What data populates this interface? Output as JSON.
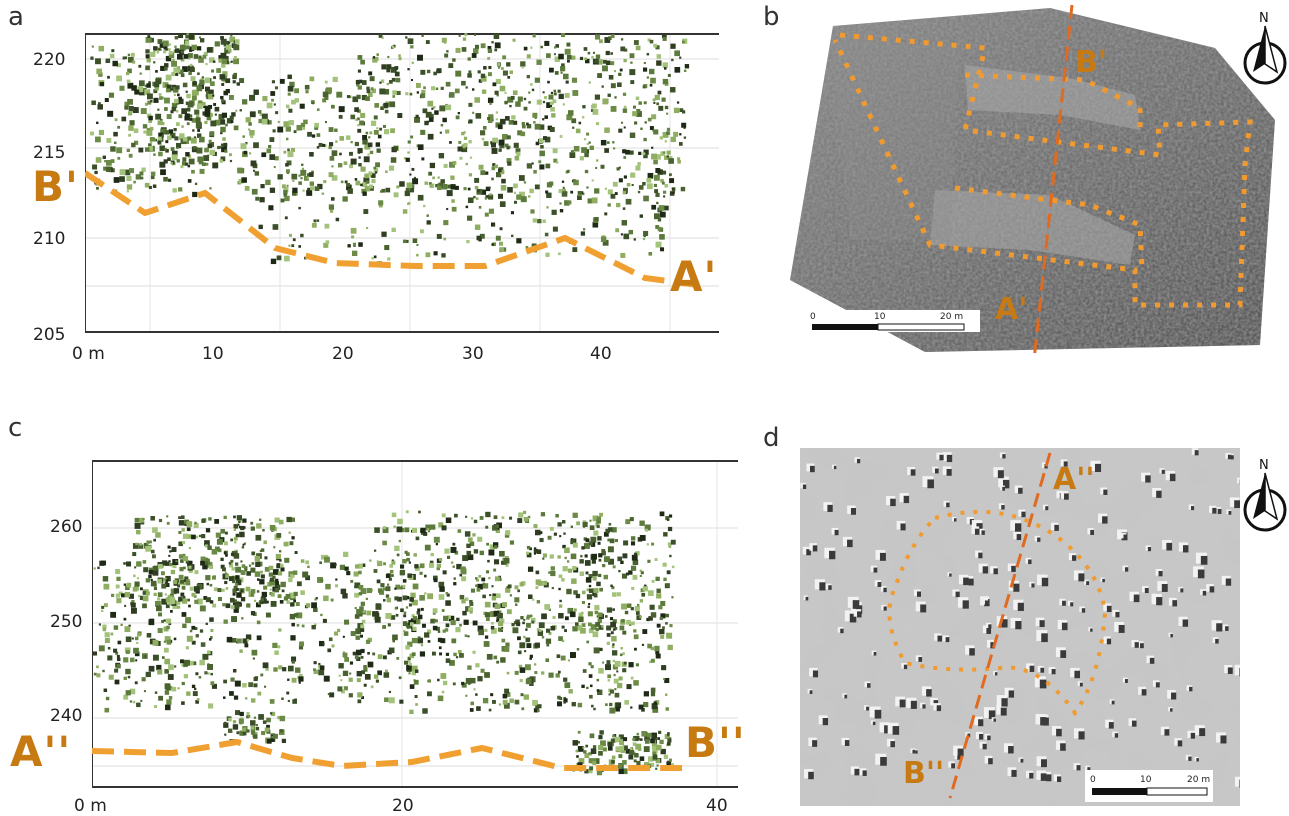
{
  "panels": {
    "a": {
      "letter": "a",
      "y_ticks": [
        "220",
        "215",
        "210",
        "205"
      ],
      "x_ticks": [
        "0 m",
        "10",
        "20",
        "30",
        "40"
      ],
      "label_left": "B'",
      "label_right": "A'"
    },
    "b": {
      "letter": "b",
      "label_top": "B'",
      "label_bottom": "A'",
      "scale": {
        "t0": "0",
        "t1": "10",
        "t2": "20 m"
      },
      "north": "N"
    },
    "c": {
      "letter": "c",
      "y_ticks": [
        "260",
        "250",
        "240"
      ],
      "x_ticks": [
        "0 m",
        "20",
        "40"
      ],
      "label_left": "A''",
      "label_right": "B''"
    },
    "d": {
      "letter": "d",
      "label_top": "A''",
      "label_bottom": "B''",
      "scale": {
        "t0": "0",
        "t1": "10",
        "t2": "20 m"
      },
      "north": "N"
    }
  },
  "colors": {
    "profile_dash": "#f0a030",
    "section_line": "#e06a20",
    "outline_dots": "#f09a30",
    "label": "#c77a12"
  }
}
